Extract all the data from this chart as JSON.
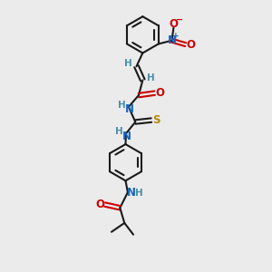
{
  "background_color": "#ebebeb",
  "line_color": "#1a1a1a",
  "bond_width": 1.5,
  "atoms": {
    "N_color": "#1565c0",
    "O_color": "#cc0000",
    "S_color": "#b8860b",
    "H_color": "#4a8fa8",
    "C_color": "#1a1a1a"
  },
  "fig_width": 3.0,
  "fig_height": 3.0,
  "dpi": 100,
  "xlim": [
    0,
    6
  ],
  "ylim": [
    0,
    12
  ]
}
